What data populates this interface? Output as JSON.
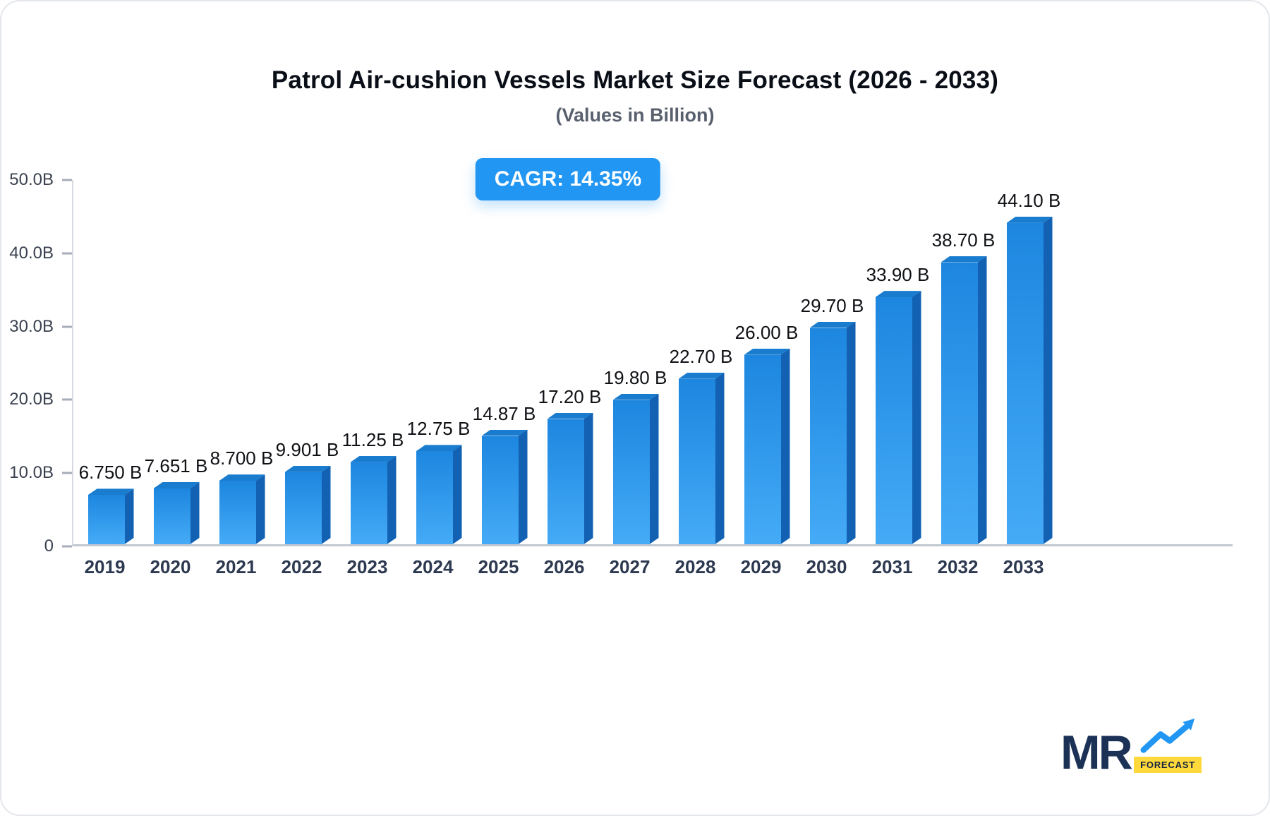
{
  "title": "Patrol Air-cushion Vessels Market Size Forecast (2026 - 2033)",
  "subtitle": "(Values in Billion)",
  "badge": {
    "label": "CAGR: 14.35%"
  },
  "chart_data": {
    "type": "bar",
    "title": "Patrol Air-cushion Vessels Market Size Forecast (2026 - 2033)",
    "subtitle": "(Values in Billion)",
    "categories": [
      "2019",
      "2020",
      "2021",
      "2022",
      "2023",
      "2024",
      "2025",
      "2026",
      "2027",
      "2028",
      "2029",
      "2030",
      "2031",
      "2032",
      "2033"
    ],
    "values": [
      6.75,
      7.651,
      8.7,
      9.901,
      11.25,
      12.75,
      14.87,
      17.2,
      19.8,
      22.7,
      26.0,
      29.7,
      33.9,
      38.7,
      44.1
    ],
    "value_labels": [
      "6.750 B",
      "7.651 B",
      "8.700 B",
      "9.901 B",
      "11.25 B",
      "12.75 B",
      "14.87 B",
      "17.20 B",
      "19.80 B",
      "22.70 B",
      "26.00 B",
      "29.70 B",
      "33.90 B",
      "38.70 B",
      "44.10 B"
    ],
    "xlabel": "",
    "ylabel": "",
    "ylim": [
      0,
      50
    ],
    "grid": false,
    "legend": false,
    "y_ticks": [
      {
        "label": "50.0B",
        "value": 50
      },
      {
        "label": "40.0B",
        "value": 40
      },
      {
        "label": "30.0B",
        "value": 30
      },
      {
        "label": "20.0B",
        "value": 20
      },
      {
        "label": "10.0B",
        "value": 10
      },
      {
        "label": "0",
        "value": 0
      }
    ]
  },
  "colors": {
    "badge_bg": "#2196f3",
    "bar_front_top": "#1d86df",
    "bar_front_bottom": "#45abf7",
    "bar_side": "#1261b2",
    "bar_top_face": "#1a7ccf",
    "logo_navy": "#1c3156",
    "logo_yellow": "#ffd93b"
  },
  "logo": {
    "text": "MR",
    "sub": "FORECAST"
  }
}
